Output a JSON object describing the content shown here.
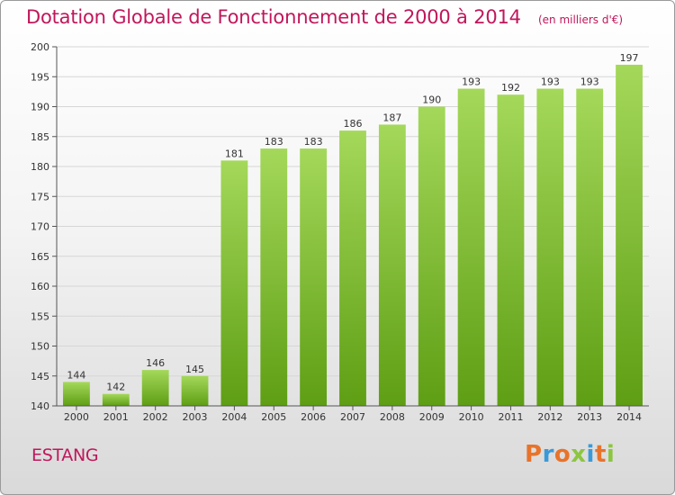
{
  "title": "Dotation Globale de Fonctionnement de 2000 à 2014",
  "subtitle": "(en milliers d'€)",
  "location": "ESTANG",
  "logo": {
    "text": "Proxiti",
    "colors": [
      "#e8732a",
      "#3a9ad9",
      "#e8732a",
      "#8cc63f",
      "#3a9ad9",
      "#e8732a",
      "#8cc63f"
    ]
  },
  "colors": {
    "title": "#c0175b",
    "bar_top": "#a4d85a",
    "bar_bottom": "#5e9e14"
  },
  "chart_data": {
    "type": "bar",
    "categories": [
      "2000",
      "2001",
      "2002",
      "2003",
      "2004",
      "2005",
      "2006",
      "2007",
      "2008",
      "2009",
      "2010",
      "2011",
      "2012",
      "2013",
      "2014"
    ],
    "values": [
      144,
      142,
      146,
      145,
      181,
      183,
      183,
      186,
      187,
      190,
      193,
      192,
      193,
      193,
      197
    ],
    "ylim": [
      140,
      200
    ],
    "yticks": [
      140,
      145,
      150,
      155,
      160,
      165,
      170,
      175,
      180,
      185,
      190,
      195,
      200
    ],
    "grid": true,
    "data_labels": true
  }
}
